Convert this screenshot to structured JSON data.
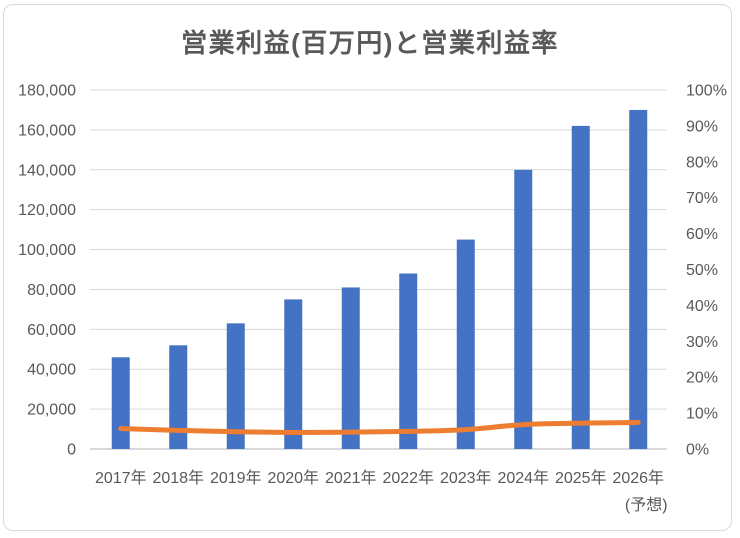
{
  "chart_data": {
    "type": "bar",
    "combo": "bar+line",
    "title": "営業利益(百万円)と営業利益率",
    "categories": [
      "2017年",
      "2018年",
      "2019年",
      "2020年",
      "2021年",
      "2022年",
      "2023年",
      "2024年",
      "2025年",
      "2026年"
    ],
    "forecast_note": "(予想)",
    "series": [
      {
        "name": "営業利益(百万円)",
        "type": "bar",
        "axis": "left",
        "color": "#4472C4",
        "values": [
          46000,
          52000,
          63000,
          75000,
          81000,
          88000,
          105000,
          140000,
          162000,
          170000
        ]
      },
      {
        "name": "営業利益率",
        "type": "line",
        "axis": "right",
        "color": "#ED7D31",
        "values": [
          5.7,
          5.2,
          4.8,
          4.6,
          4.7,
          4.9,
          5.4,
          6.8,
          7.2,
          7.4
        ]
      }
    ],
    "left_axis": {
      "min": 0,
      "max": 180000,
      "step": 20000,
      "tick_labels_top_to_bottom": [
        "180,000",
        "160,000",
        "140,000",
        "120,000",
        "100,000",
        "80,000",
        "60,000",
        "40,000",
        "20,000",
        "0"
      ]
    },
    "right_axis": {
      "min": 0,
      "max": 100,
      "step": 10,
      "tick_labels_top_to_bottom": [
        "100%",
        "90%",
        "80%",
        "70%",
        "60%",
        "50%",
        "40%",
        "30%",
        "20%",
        "10%",
        "0%"
      ]
    },
    "grid": true,
    "legend": "none",
    "colors": {
      "bar": "#4472C4",
      "line": "#ED7D31",
      "grid": "#D9D9D9",
      "axis_line": "#D9D9D9",
      "text": "#595959",
      "border": "#D9D9D9"
    }
  }
}
